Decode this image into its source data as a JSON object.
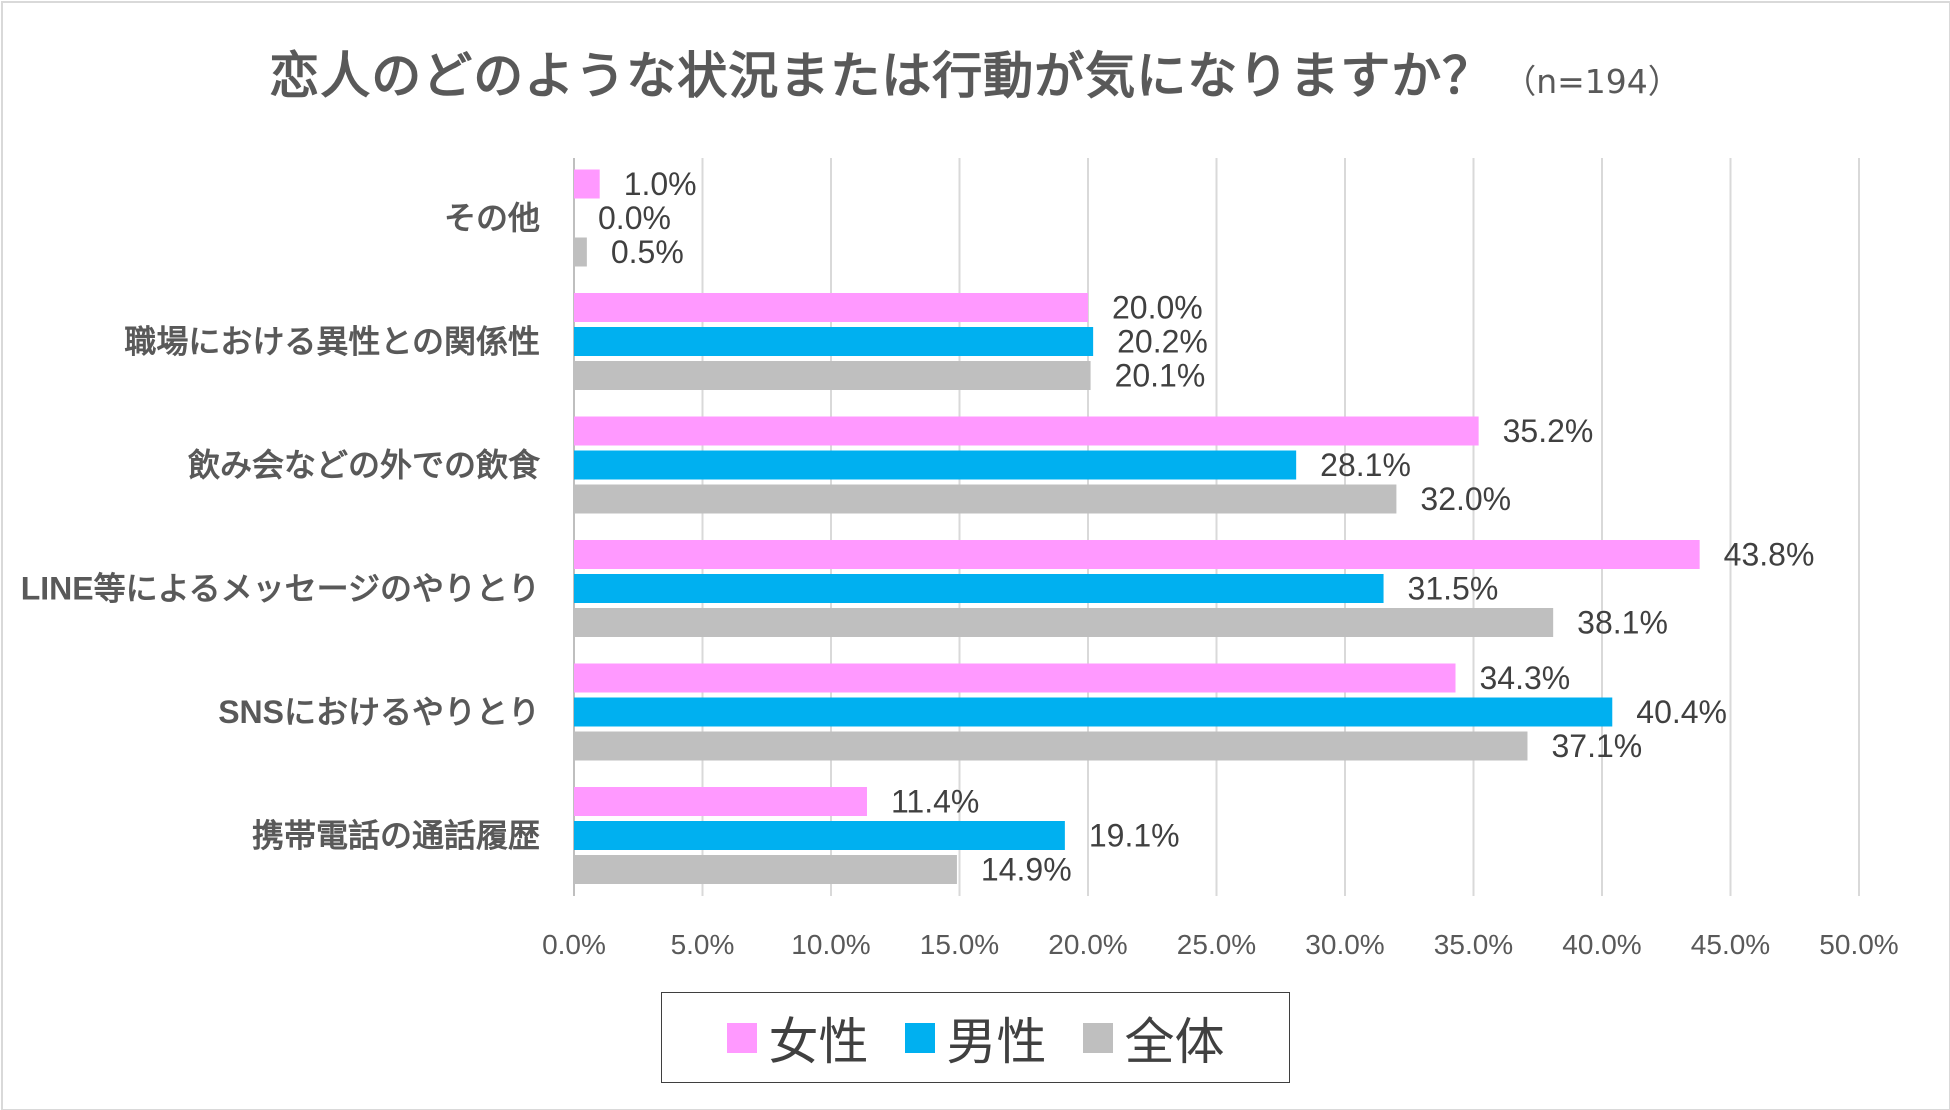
{
  "chart_data": {
    "type": "bar",
    "orientation": "horizontal",
    "title": "恋人のどのような状況または行動が気になりますか？",
    "subtitle": "（n=194）",
    "categories": [
      "その他",
      "職場における異性との関係性",
      "飲み会などの外での飲食",
      "LINE等によるメッセージのやりとり",
      "SNSにおけるやりとり",
      "携帯電話の通話履歴"
    ],
    "series": [
      {
        "name": "女性",
        "color": "#ff99ff",
        "values": [
          1.0,
          20.0,
          35.2,
          43.8,
          34.3,
          11.4
        ],
        "labels": [
          "1.0%",
          "20.0%",
          "35.2%",
          "43.8%",
          "34.3%",
          "11.4%"
        ]
      },
      {
        "name": "男性",
        "color": "#00b0f0",
        "values": [
          0.0,
          20.2,
          28.1,
          31.5,
          40.4,
          19.1
        ],
        "labels": [
          "0.0%",
          "20.2%",
          "28.1%",
          "31.5%",
          "40.4%",
          "19.1%"
        ]
      },
      {
        "name": "全体",
        "color": "#bfbfbf",
        "values": [
          0.5,
          20.1,
          32.0,
          38.1,
          37.1,
          14.9
        ],
        "labels": [
          "0.5%",
          "20.1%",
          "32.0%",
          "38.1%",
          "37.1%",
          "14.9%"
        ]
      }
    ],
    "x_ticks": [
      "0.0%",
      "5.0%",
      "10.0%",
      "15.0%",
      "20.0%",
      "25.0%",
      "30.0%",
      "35.0%",
      "40.0%",
      "45.0%",
      "50.0%"
    ],
    "xlim": [
      0,
      50
    ],
    "xlabel": "",
    "ylabel": "",
    "grid": "vertical",
    "legend_position": "bottom"
  }
}
